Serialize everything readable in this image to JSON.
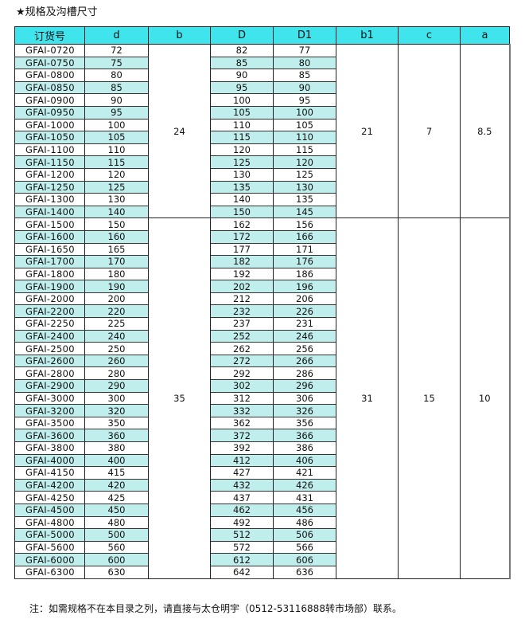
{
  "title": "★规格及沟槽尺寸",
  "table": {
    "headers": [
      "订货号",
      "d",
      "b",
      "D",
      "D1",
      "b1",
      "c",
      "a"
    ],
    "groups": [
      {
        "b": "24",
        "b1": "21",
        "c": "7",
        "a": "8.5",
        "rows": [
          [
            "GFAI-0720",
            "72",
            "82",
            "77"
          ],
          [
            "GFAI-0750",
            "75",
            "85",
            "80"
          ],
          [
            "GFAI-0800",
            "80",
            "90",
            "85"
          ],
          [
            "GFAI-0850",
            "85",
            "95",
            "90"
          ],
          [
            "GFAI-0900",
            "90",
            "100",
            "95"
          ],
          [
            "GFAI-0950",
            "95",
            "105",
            "100"
          ],
          [
            "GFAI-1000",
            "100",
            "110",
            "105"
          ],
          [
            "GFAI-1050",
            "105",
            "115",
            "110"
          ],
          [
            "GFAI-1100",
            "110",
            "120",
            "115"
          ],
          [
            "GFAI-1150",
            "115",
            "125",
            "120"
          ],
          [
            "GFAI-1200",
            "120",
            "130",
            "125"
          ],
          [
            "GFAI-1250",
            "125",
            "135",
            "130"
          ],
          [
            "GFAI-1300",
            "130",
            "140",
            "135"
          ],
          [
            "GFAI-1400",
            "140",
            "150",
            "145"
          ]
        ]
      },
      {
        "b": "35",
        "b1": "31",
        "c": "15",
        "a": "10",
        "rows": [
          [
            "GFAI-1500",
            "150",
            "162",
            "156"
          ],
          [
            "GFAI-1600",
            "160",
            "172",
            "166"
          ],
          [
            "GFAI-1650",
            "165",
            "177",
            "171"
          ],
          [
            "GFAI-1700",
            "170",
            "182",
            "176"
          ],
          [
            "GFAI-1800",
            "180",
            "192",
            "186"
          ],
          [
            "GFAI-1900",
            "190",
            "202",
            "196"
          ],
          [
            "GFAI-2000",
            "200",
            "212",
            "206"
          ],
          [
            "GFAI-2200",
            "220",
            "232",
            "226"
          ],
          [
            "GFAI-2250",
            "225",
            "237",
            "231"
          ],
          [
            "GFAI-2400",
            "240",
            "252",
            "246"
          ],
          [
            "GFAI-2500",
            "250",
            "262",
            "256"
          ],
          [
            "GFAI-2600",
            "260",
            "272",
            "266"
          ],
          [
            "GFAI-2800",
            "280",
            "292",
            "286"
          ],
          [
            "GFAI-2900",
            "290",
            "302",
            "296"
          ],
          [
            "GFAI-3000",
            "300",
            "312",
            "306"
          ],
          [
            "GFAI-3200",
            "320",
            "332",
            "326"
          ],
          [
            "GFAI-3500",
            "350",
            "362",
            "356"
          ],
          [
            "GFAI-3600",
            "360",
            "372",
            "366"
          ],
          [
            "GFAI-3800",
            "380",
            "392",
            "386"
          ],
          [
            "GFAI-4000",
            "400",
            "412",
            "406"
          ],
          [
            "GFAI-4150",
            "415",
            "427",
            "421"
          ],
          [
            "GFAI-4200",
            "420",
            "432",
            "426"
          ],
          [
            "GFAI-4250",
            "425",
            "437",
            "431"
          ],
          [
            "GFAI-4500",
            "450",
            "462",
            "456"
          ],
          [
            "GFAI-4800",
            "480",
            "492",
            "486"
          ],
          [
            "GFAI-5000",
            "500",
            "512",
            "506"
          ],
          [
            "GFAI-5600",
            "560",
            "572",
            "566"
          ],
          [
            "GFAI-6000",
            "600",
            "612",
            "606"
          ],
          [
            "GFAI-6300",
            "630",
            "642",
            "636"
          ]
        ]
      }
    ]
  },
  "note": "注：如需规格不在本目录之列，请直接与太仓明宇（0512-53116888转市场部）联系。",
  "colors": {
    "header": "#40e4ec",
    "alt_row": "#c0eeec"
  }
}
